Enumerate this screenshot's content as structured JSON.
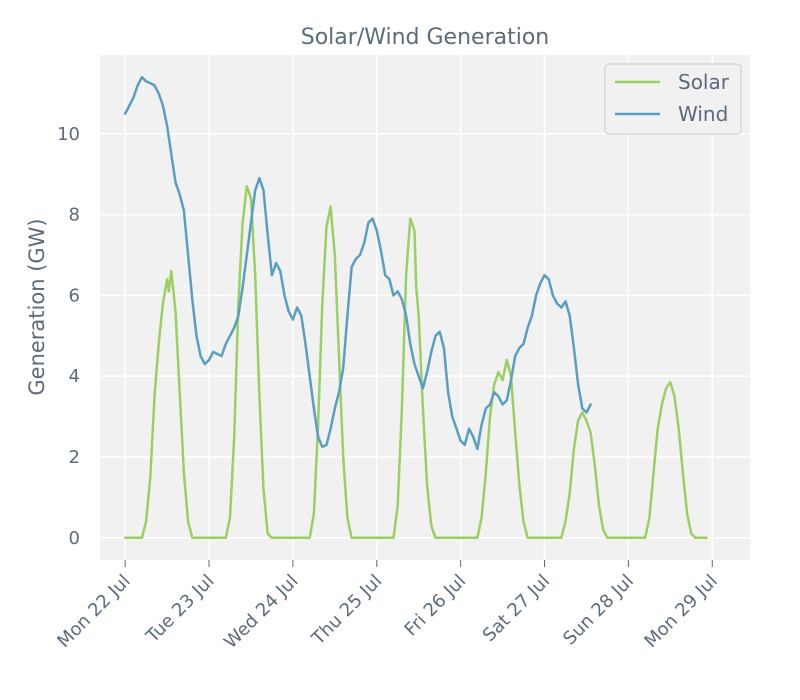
{
  "chart_data": {
    "type": "line",
    "title": "Solar/Wind Generation",
    "xlabel": "",
    "ylabel": "Generation (GW)",
    "xlim": [
      -0.3,
      7.45
    ],
    "ylim": [
      -0.55,
      11.95
    ],
    "grid": true,
    "legend_position": "top-right",
    "x_ticks": [
      {
        "value": 0,
        "label": "Mon 22 Jul"
      },
      {
        "value": 1,
        "label": "Tue 23 Jul"
      },
      {
        "value": 2,
        "label": "Wed 24 Jul"
      },
      {
        "value": 3,
        "label": "Thu 25 Jul"
      },
      {
        "value": 4,
        "label": "Fri 26 Jul"
      },
      {
        "value": 5,
        "label": "Sat 27 Jul"
      },
      {
        "value": 6,
        "label": "Sun 28 Jul"
      },
      {
        "value": 7,
        "label": "Mon 29 Jul"
      }
    ],
    "y_ticks": [
      0,
      2,
      4,
      6,
      8,
      10
    ],
    "series": [
      {
        "name": "Solar",
        "color": "#9ccf63",
        "points": [
          [
            0,
            0
          ],
          [
            0.2,
            0
          ],
          [
            0.25,
            0.4
          ],
          [
            0.3,
            1.5
          ],
          [
            0.35,
            3.5
          ],
          [
            0.4,
            4.8
          ],
          [
            0.45,
            5.8
          ],
          [
            0.5,
            6.4
          ],
          [
            0.52,
            6.1
          ],
          [
            0.55,
            6.6
          ],
          [
            0.6,
            5.6
          ],
          [
            0.65,
            3.6
          ],
          [
            0.7,
            1.6
          ],
          [
            0.75,
            0.4
          ],
          [
            0.8,
            0
          ],
          [
            1.2,
            0
          ],
          [
            1.25,
            0.5
          ],
          [
            1.3,
            2.5
          ],
          [
            1.35,
            5.8
          ],
          [
            1.4,
            7.8
          ],
          [
            1.45,
            8.7
          ],
          [
            1.5,
            8.4
          ],
          [
            1.55,
            6.5
          ],
          [
            1.6,
            3.5
          ],
          [
            1.65,
            1.2
          ],
          [
            1.7,
            0.1
          ],
          [
            1.75,
            0
          ],
          [
            2.2,
            0
          ],
          [
            2.25,
            0.6
          ],
          [
            2.3,
            2.8
          ],
          [
            2.35,
            5.8
          ],
          [
            2.4,
            7.7
          ],
          [
            2.45,
            8.2
          ],
          [
            2.5,
            7.0
          ],
          [
            2.55,
            4.5
          ],
          [
            2.6,
            2.0
          ],
          [
            2.65,
            0.5
          ],
          [
            2.7,
            0
          ],
          [
            3.2,
            0
          ],
          [
            3.25,
            0.8
          ],
          [
            3.3,
            3.2
          ],
          [
            3.35,
            6.5
          ],
          [
            3.4,
            7.9
          ],
          [
            3.45,
            7.6
          ],
          [
            3.47,
            6.2
          ],
          [
            3.5,
            5.5
          ],
          [
            3.55,
            3.2
          ],
          [
            3.6,
            1.3
          ],
          [
            3.65,
            0.3
          ],
          [
            3.7,
            0
          ],
          [
            4.2,
            0
          ],
          [
            4.25,
            0.5
          ],
          [
            4.3,
            1.6
          ],
          [
            4.35,
            3.0
          ],
          [
            4.4,
            3.8
          ],
          [
            4.45,
            4.1
          ],
          [
            4.5,
            3.9
          ],
          [
            4.55,
            4.4
          ],
          [
            4.6,
            4.0
          ],
          [
            4.65,
            2.6
          ],
          [
            4.7,
            1.3
          ],
          [
            4.75,
            0.4
          ],
          [
            4.8,
            0
          ],
          [
            5.2,
            0
          ],
          [
            5.25,
            0.4
          ],
          [
            5.3,
            1.1
          ],
          [
            5.35,
            2.2
          ],
          [
            5.4,
            2.9
          ],
          [
            5.45,
            3.1
          ],
          [
            5.5,
            2.9
          ],
          [
            5.55,
            2.6
          ],
          [
            5.6,
            1.8
          ],
          [
            5.65,
            0.8
          ],
          [
            5.7,
            0.2
          ],
          [
            5.75,
            0
          ],
          [
            6.2,
            0
          ],
          [
            6.25,
            0.5
          ],
          [
            6.3,
            1.6
          ],
          [
            6.35,
            2.7
          ],
          [
            6.4,
            3.3
          ],
          [
            6.45,
            3.7
          ],
          [
            6.5,
            3.85
          ],
          [
            6.55,
            3.5
          ],
          [
            6.6,
            2.7
          ],
          [
            6.65,
            1.6
          ],
          [
            6.7,
            0.6
          ],
          [
            6.75,
            0.1
          ],
          [
            6.8,
            0
          ],
          [
            6.93,
            0
          ]
        ]
      },
      {
        "name": "Wind",
        "color": "#5a9ec1",
        "points": [
          [
            0,
            10.5
          ],
          [
            0.05,
            10.7
          ],
          [
            0.1,
            10.9
          ],
          [
            0.15,
            11.2
          ],
          [
            0.2,
            11.4
          ],
          [
            0.25,
            11.3
          ],
          [
            0.3,
            11.25
          ],
          [
            0.35,
            11.2
          ],
          [
            0.4,
            11.0
          ],
          [
            0.45,
            10.7
          ],
          [
            0.5,
            10.2
          ],
          [
            0.55,
            9.5
          ],
          [
            0.6,
            8.8
          ],
          [
            0.65,
            8.5
          ],
          [
            0.7,
            8.1
          ],
          [
            0.75,
            7.0
          ],
          [
            0.8,
            5.9
          ],
          [
            0.85,
            5.0
          ],
          [
            0.9,
            4.5
          ],
          [
            0.95,
            4.3
          ],
          [
            1.0,
            4.4
          ],
          [
            1.05,
            4.6
          ],
          [
            1.1,
            4.55
          ],
          [
            1.15,
            4.5
          ],
          [
            1.2,
            4.8
          ],
          [
            1.25,
            5.0
          ],
          [
            1.3,
            5.2
          ],
          [
            1.35,
            5.5
          ],
          [
            1.4,
            6.2
          ],
          [
            1.45,
            7.0
          ],
          [
            1.5,
            7.8
          ],
          [
            1.55,
            8.6
          ],
          [
            1.6,
            8.9
          ],
          [
            1.65,
            8.6
          ],
          [
            1.7,
            7.5
          ],
          [
            1.75,
            6.5
          ],
          [
            1.8,
            6.8
          ],
          [
            1.85,
            6.6
          ],
          [
            1.9,
            6.0
          ],
          [
            1.95,
            5.6
          ],
          [
            2.0,
            5.4
          ],
          [
            2.05,
            5.7
          ],
          [
            2.1,
            5.5
          ],
          [
            2.15,
            4.8
          ],
          [
            2.2,
            4.0
          ],
          [
            2.25,
            3.2
          ],
          [
            2.3,
            2.5
          ],
          [
            2.35,
            2.25
          ],
          [
            2.4,
            2.3
          ],
          [
            2.45,
            2.7
          ],
          [
            2.5,
            3.2
          ],
          [
            2.55,
            3.6
          ],
          [
            2.6,
            4.2
          ],
          [
            2.65,
            5.5
          ],
          [
            2.7,
            6.7
          ],
          [
            2.75,
            6.9
          ],
          [
            2.8,
            7.0
          ],
          [
            2.85,
            7.3
          ],
          [
            2.9,
            7.8
          ],
          [
            2.95,
            7.9
          ],
          [
            3.0,
            7.6
          ],
          [
            3.05,
            7.1
          ],
          [
            3.1,
            6.5
          ],
          [
            3.15,
            6.4
          ],
          [
            3.2,
            6.0
          ],
          [
            3.25,
            6.1
          ],
          [
            3.3,
            5.9
          ],
          [
            3.35,
            5.5
          ],
          [
            3.4,
            4.8
          ],
          [
            3.45,
            4.3
          ],
          [
            3.5,
            4.0
          ],
          [
            3.55,
            3.7
          ],
          [
            3.6,
            4.1
          ],
          [
            3.65,
            4.6
          ],
          [
            3.7,
            5.0
          ],
          [
            3.75,
            5.1
          ],
          [
            3.8,
            4.7
          ],
          [
            3.85,
            3.6
          ],
          [
            3.9,
            3.0
          ],
          [
            3.95,
            2.7
          ],
          [
            4.0,
            2.4
          ],
          [
            4.05,
            2.3
          ],
          [
            4.1,
            2.7
          ],
          [
            4.15,
            2.5
          ],
          [
            4.2,
            2.2
          ],
          [
            4.25,
            2.8
          ],
          [
            4.3,
            3.2
          ],
          [
            4.35,
            3.3
          ],
          [
            4.4,
            3.6
          ],
          [
            4.45,
            3.5
          ],
          [
            4.5,
            3.3
          ],
          [
            4.55,
            3.4
          ],
          [
            4.6,
            3.9
          ],
          [
            4.65,
            4.5
          ],
          [
            4.7,
            4.7
          ],
          [
            4.75,
            4.8
          ],
          [
            4.8,
            5.2
          ],
          [
            4.85,
            5.5
          ],
          [
            4.9,
            6.0
          ],
          [
            4.95,
            6.3
          ],
          [
            5.0,
            6.5
          ],
          [
            5.05,
            6.4
          ],
          [
            5.1,
            6.0
          ],
          [
            5.15,
            5.8
          ],
          [
            5.2,
            5.7
          ],
          [
            5.25,
            5.85
          ],
          [
            5.3,
            5.5
          ],
          [
            5.35,
            4.7
          ],
          [
            5.4,
            3.8
          ],
          [
            5.45,
            3.2
          ],
          [
            5.5,
            3.1
          ],
          [
            5.55,
            3.3
          ]
        ]
      }
    ]
  }
}
